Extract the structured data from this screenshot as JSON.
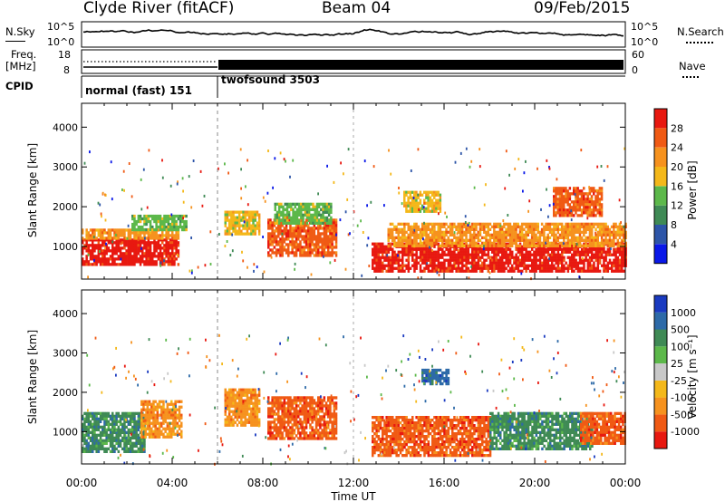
{
  "header": {
    "title": "Clyde River (fitACF)",
    "beam": "Beam 04",
    "date": "09/Feb/2015"
  },
  "strip": {
    "nsky_label": "N.Sky",
    "nsky_ticks": [
      "10^5",
      "10^0"
    ],
    "nsearch_label": "N.Search",
    "nsearch_ticks": [
      "10^5",
      "10^0"
    ],
    "freq_label_1": "Freq.",
    "freq_label_2": "[MHz]",
    "freq_ticks": [
      "18",
      "8"
    ],
    "nave_label": "Nave",
    "nave_ticks": [
      "60",
      "0"
    ],
    "cpid_label": "CPID",
    "cpid_modes": [
      "normal (fast) 151",
      "twofsound 3503"
    ]
  },
  "colors": {
    "power": [
      "#0a18e8",
      "#2d55a8",
      "#3f8a55",
      "#5cb84a",
      "#f4b81a",
      "#f6921e",
      "#f05a14",
      "#e81810"
    ],
    "velocity": [
      "#e81810",
      "#f05a14",
      "#f6921e",
      "#f4b81a",
      "#c8c8c8",
      "#5cb84a",
      "#3f8a55",
      "#2d6aa8",
      "#1a3ac0"
    ]
  },
  "chart_data": [
    {
      "type": "heatmap",
      "name": "power",
      "ylabel": "Slant Range [km]",
      "yticks": [
        1000,
        2000,
        3000,
        4000
      ],
      "ylim": [
        180,
        4600
      ],
      "xlim": [
        0,
        24
      ],
      "colorbar_label": "Power [dB]",
      "colorbar_ticks": [
        "4",
        "8",
        "12",
        "16",
        "20",
        "24",
        "28"
      ],
      "regions": [
        {
          "x": [
            0.0,
            4.3
          ],
          "y": [
            550,
            1200
          ],
          "level": 7
        },
        {
          "x": [
            0.0,
            4.3
          ],
          "y": [
            1200,
            1450
          ],
          "level": 5
        },
        {
          "x": [
            2.2,
            4.6
          ],
          "y": [
            1400,
            1800
          ],
          "level": 3
        },
        {
          "x": [
            6.3,
            7.8
          ],
          "y": [
            1300,
            1900
          ],
          "level": 4
        },
        {
          "x": [
            8.2,
            11.2
          ],
          "y": [
            800,
            1700
          ],
          "level": 6
        },
        {
          "x": [
            8.5,
            11.0
          ],
          "y": [
            1600,
            2100
          ],
          "level": 3
        },
        {
          "x": [
            12.8,
            24.0
          ],
          "y": [
            350,
            1100
          ],
          "level": 7
        },
        {
          "x": [
            13.5,
            24.0
          ],
          "y": [
            1000,
            1600
          ],
          "level": 5
        },
        {
          "x": [
            14.2,
            15.8
          ],
          "y": [
            1900,
            2400
          ],
          "level": 4
        },
        {
          "x": [
            20.8,
            23.0
          ],
          "y": [
            1800,
            2500
          ],
          "level": 6
        }
      ]
    },
    {
      "type": "heatmap",
      "name": "velocity",
      "ylabel": "Slant Range [km]",
      "yticks": [
        1000,
        2000,
        3000,
        4000
      ],
      "ylim": [
        180,
        4600
      ],
      "xlim": [
        0,
        24
      ],
      "colorbar_label": "Velocity [m s⁻¹]",
      "colorbar_ticks": [
        "-1000",
        "-500",
        "-100",
        "-25",
        "25",
        "100",
        "500",
        "1000"
      ],
      "regions": [
        {
          "x": [
            0.0,
            2.8
          ],
          "y": [
            500,
            1500
          ],
          "level": 6
        },
        {
          "x": [
            2.6,
            4.4
          ],
          "y": [
            900,
            1800
          ],
          "level": 2
        },
        {
          "x": [
            6.3,
            7.8
          ],
          "y": [
            1200,
            2100
          ],
          "level": 2
        },
        {
          "x": [
            8.2,
            11.2
          ],
          "y": [
            800,
            1900
          ],
          "level": 1
        },
        {
          "x": [
            12.8,
            18.0
          ],
          "y": [
            400,
            1400
          ],
          "level": 1
        },
        {
          "x": [
            18.0,
            22.5
          ],
          "y": [
            600,
            1500
          ],
          "level": 6
        },
        {
          "x": [
            22.0,
            24.0
          ],
          "y": [
            700,
            1500
          ],
          "level": 1
        },
        {
          "x": [
            15.0,
            16.2
          ],
          "y": [
            2200,
            2600
          ],
          "level": 7
        }
      ]
    }
  ],
  "xaxis": {
    "ticks": [
      "00:00",
      "04:00",
      "08:00",
      "12:00",
      "16:00",
      "20:00",
      "00:00"
    ],
    "label": "Time UT"
  }
}
